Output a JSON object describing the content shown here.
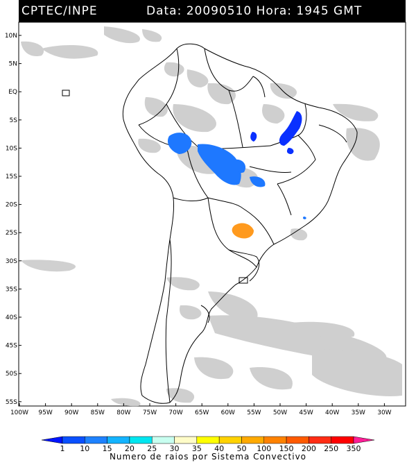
{
  "header": {
    "agency": "CPTEC/INPE",
    "datetime_text": "Data: 20090510 Hora: 1945 GMT"
  },
  "map": {
    "region": "South America",
    "lat_labels": [
      "10N",
      "5N",
      "EQ",
      "5S",
      "10S",
      "15S",
      "20S",
      "25S",
      "30S",
      "35S",
      "40S",
      "45S",
      "50S",
      "55S"
    ],
    "lon_labels": [
      "100W",
      "95W",
      "90W",
      "85W",
      "80W",
      "75W",
      "70W",
      "65W",
      "60W",
      "55W",
      "50W",
      "45W",
      "40W",
      "35W",
      "30W"
    ],
    "clouds_color": "#c8c8c8",
    "convective_systems": [
      {
        "name": "amazon-west-system",
        "color": "#1e78ff",
        "category": "10"
      },
      {
        "name": "brazil-northeast-system",
        "color": "#0a30ff",
        "category": "1"
      },
      {
        "name": "paraguay-system",
        "color": "#ff9a1e",
        "category": "100"
      }
    ]
  },
  "colorbar": {
    "ticks": [
      "1",
      "10",
      "15",
      "20",
      "25",
      "30",
      "35",
      "40",
      "50",
      "100",
      "150",
      "200",
      "250",
      "350"
    ],
    "colors": [
      "#0014ff",
      "#0a50ff",
      "#1e82ff",
      "#14b4ff",
      "#00e6f0",
      "#c8fff0",
      "#fffcc8",
      "#ffff00",
      "#ffd200",
      "#ffaa00",
      "#ff8200",
      "#ff5a00",
      "#ff2d14",
      "#ff0000",
      "#ff1e96"
    ],
    "caption": "Numero de raios por Sistema Convectivo"
  }
}
